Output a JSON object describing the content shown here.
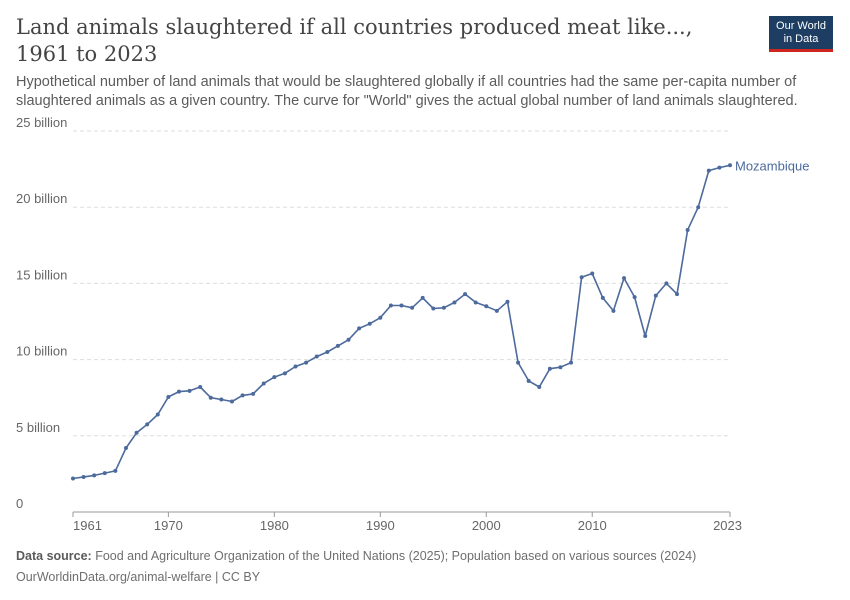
{
  "header": {
    "title": "Land animals slaughtered if all countries produced meat like..., 1961 to 2023",
    "subtitle": "Hypothetical number of land animals that would be slaughtered globally if all countries had the same per-capita number of slaughtered animals as a given country. The curve for \"World\" gives the actual global number of land animals slaughtered."
  },
  "logo": {
    "line1": "Our World",
    "line2": "in Data",
    "bg_color": "#1d3d63",
    "accent_color": "#ce261e"
  },
  "footer": {
    "source_label": "Data source:",
    "source_text": "Food and Agriculture Organization of the United Nations (2025); Population based on various sources (2024)",
    "url_text": "OurWorldinData.org/animal-welfare | CC BY"
  },
  "chart_data": {
    "type": "line",
    "title": "Land animals slaughtered if all countries produced meat like..., 1961 to 2023",
    "xlabel": "",
    "ylabel": "",
    "xlim": [
      1961,
      2023
    ],
    "ylim": [
      0,
      25000000000
    ],
    "x_tick_labels": [
      "1961",
      "1970",
      "1980",
      "1990",
      "2000",
      "2010",
      "2023"
    ],
    "x_ticks": [
      1961,
      1970,
      1980,
      1990,
      2000,
      2010,
      2023
    ],
    "y_ticks": [
      0,
      5000000000,
      10000000000,
      15000000000,
      20000000000,
      25000000000
    ],
    "y_tick_labels": [
      "0",
      "5 billion",
      "10 billion",
      "15 billion",
      "20 billion",
      "25 billion"
    ],
    "grid": "horizontal-dashed",
    "legend": "inline-end-label",
    "series": [
      {
        "name": "Mozambique",
        "color": "#4c6a9c",
        "x": [
          1961,
          1962,
          1963,
          1964,
          1965,
          1966,
          1967,
          1968,
          1969,
          1970,
          1971,
          1972,
          1973,
          1974,
          1975,
          1976,
          1977,
          1978,
          1979,
          1980,
          1981,
          1982,
          1983,
          1984,
          1985,
          1986,
          1987,
          1988,
          1989,
          1990,
          1991,
          1992,
          1993,
          1994,
          1995,
          1996,
          1997,
          1998,
          1999,
          2000,
          2001,
          2002,
          2003,
          2004,
          2005,
          2006,
          2007,
          2008,
          2009,
          2010,
          2011,
          2012,
          2013,
          2014,
          2015,
          2016,
          2017,
          2018,
          2019,
          2020,
          2021,
          2022,
          2023
        ],
        "values": [
          2200000000,
          2300000000,
          2400000000,
          2550000000,
          2700000000,
          4200000000,
          5200000000,
          5750000000,
          6400000000,
          7550000000,
          7900000000,
          7950000000,
          8200000000,
          7500000000,
          7380000000,
          7250000000,
          7650000000,
          7750000000,
          8430000000,
          8850000000,
          9100000000,
          9550000000,
          9800000000,
          10200000000,
          10500000000,
          10900000000,
          11300000000,
          12050000000,
          12350000000,
          12750000000,
          13550000000,
          13550000000,
          13400000000,
          14050000000,
          13350000000,
          13400000000,
          13750000000,
          14300000000,
          13750000000,
          13500000000,
          13200000000,
          13800000000,
          9800000000,
          8600000000,
          8200000000,
          9400000000,
          9500000000,
          9800000000,
          15400000000,
          15650000000,
          14050000000,
          13200000000,
          15350000000,
          14100000000,
          11550000000,
          14200000000,
          15000000000,
          14300000000,
          18500000000,
          20000000000,
          22400000000,
          22600000000,
          22750000000
        ]
      }
    ]
  }
}
